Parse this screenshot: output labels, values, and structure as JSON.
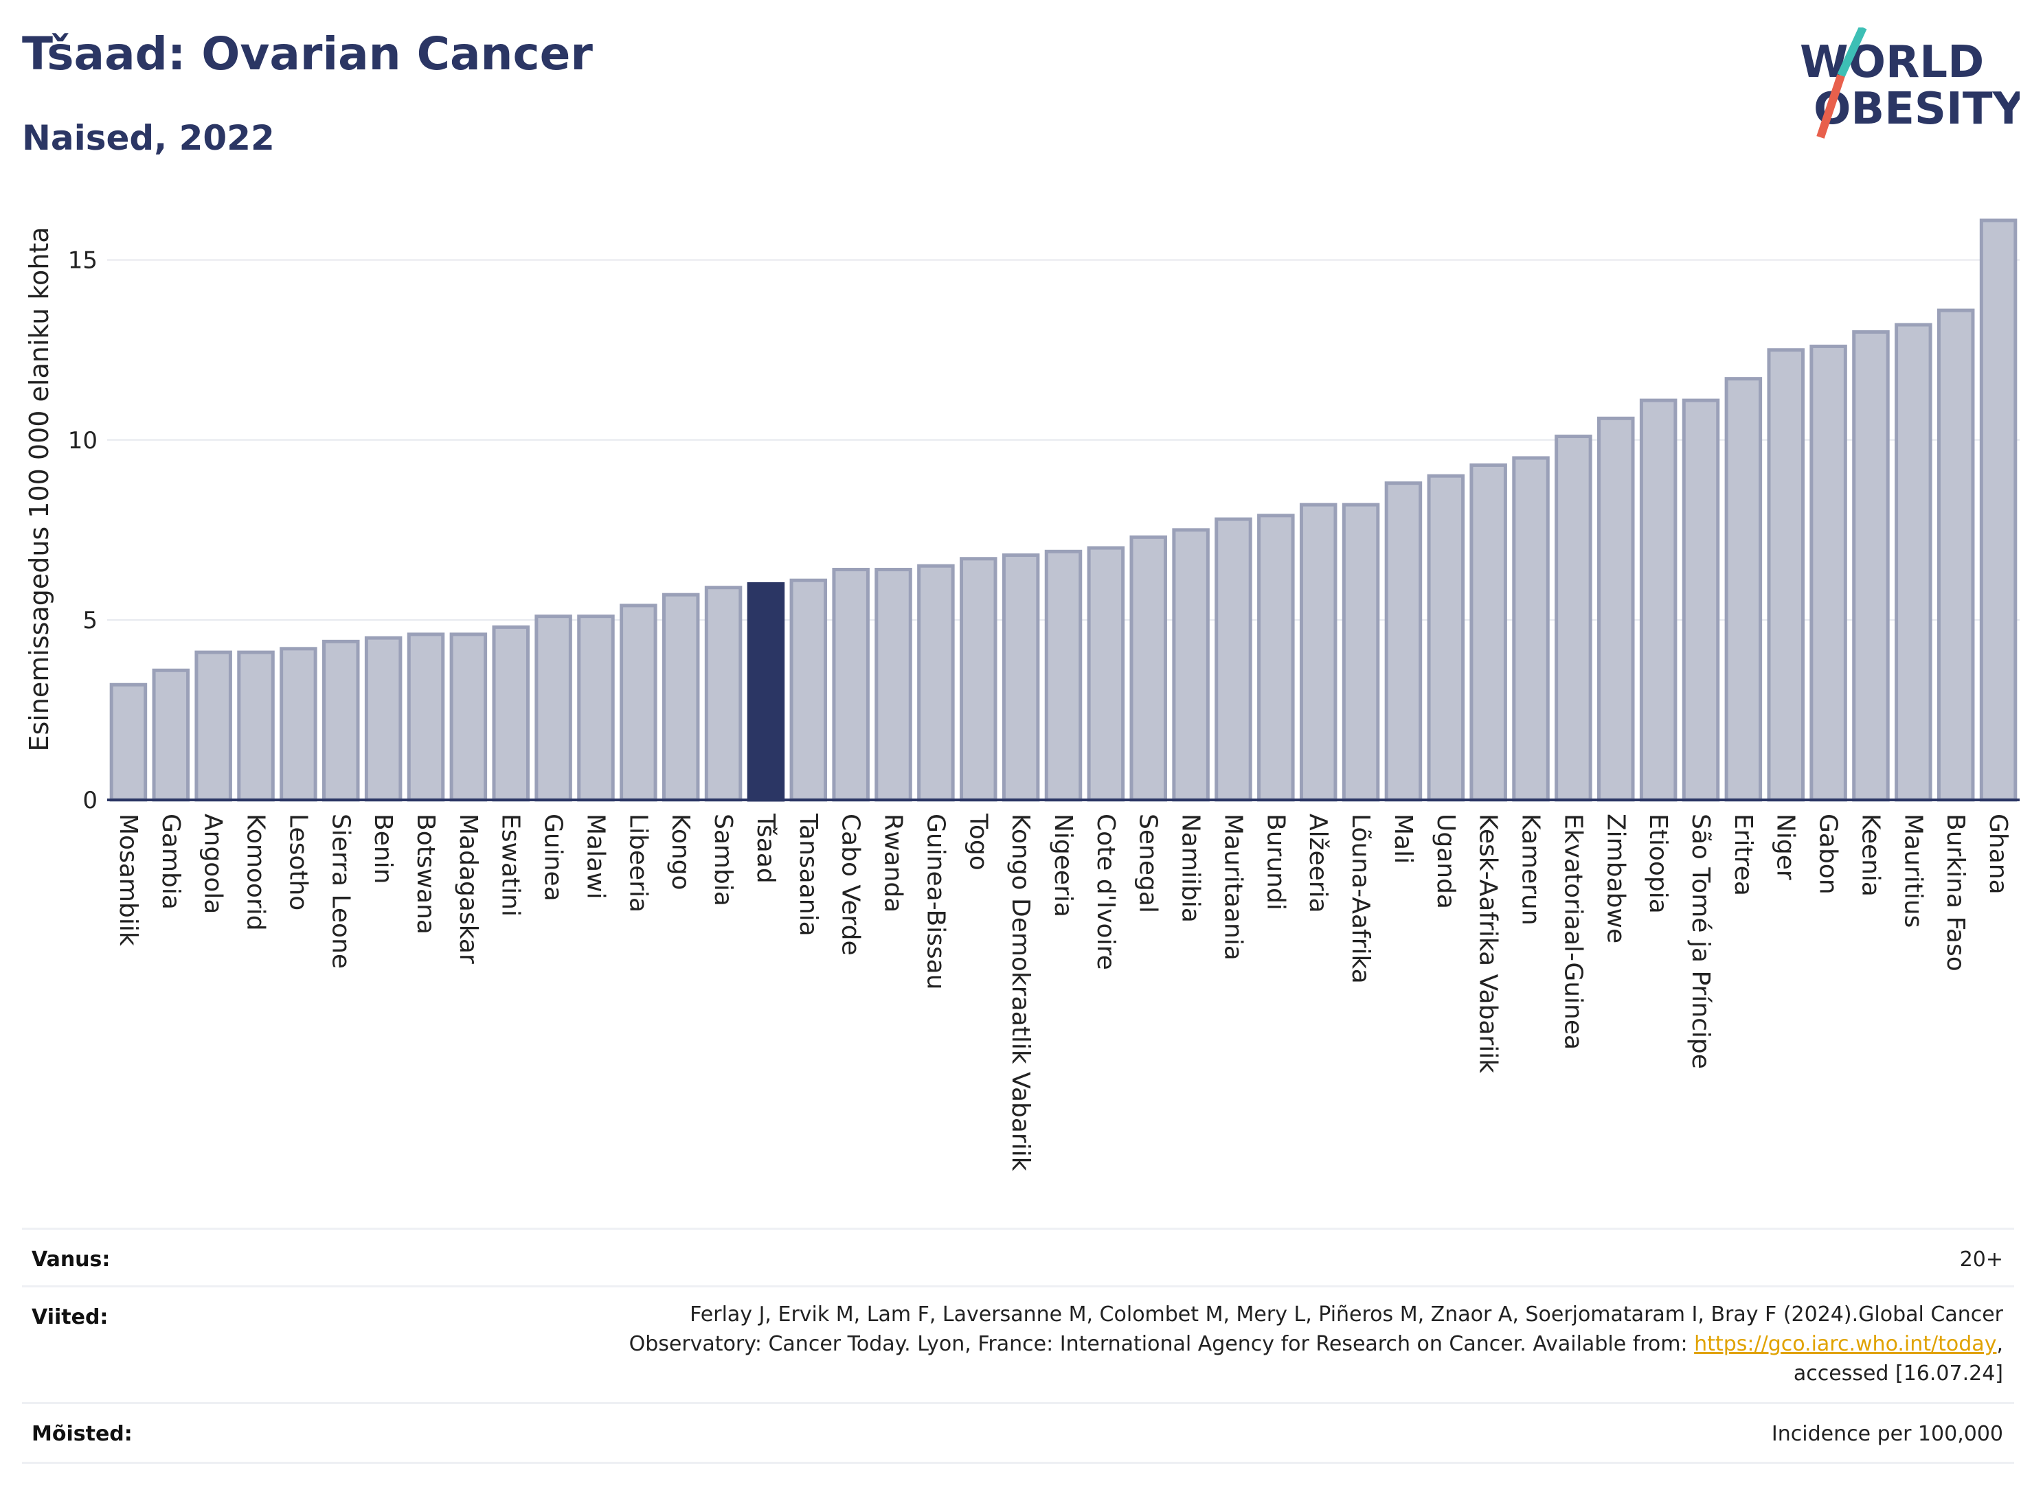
{
  "header": {
    "title": "Tšaad: Ovarian Cancer",
    "subtitle": "Naised, 2022",
    "logo_line1": "WORLD",
    "logo_line2": "OBESITY"
  },
  "colors": {
    "navy": "#2b3664",
    "bar_fill": "#bfc3d1",
    "bar_stroke": "#9aa0b8",
    "highlight": "#2b3664",
    "logo_teal": "#3dbfb5",
    "logo_red": "#e8604c"
  },
  "chart_data": {
    "type": "bar",
    "title": "Tšaad: Ovarian Cancer",
    "subtitle": "Naised, 2022",
    "ylabel": "Esinemissagedus 100 000 elaniku kohta",
    "xlabel": "",
    "ylim": [
      0,
      16.5
    ],
    "yticks": [
      0,
      5,
      10,
      15
    ],
    "grid": true,
    "highlight_category": "Tšaad",
    "categories": [
      "Mosambiik",
      "Gambia",
      "Angoola",
      "Komoorid",
      "Lesotho",
      "Sierra Leone",
      "Benin",
      "Botswana",
      "Madagaskar",
      "Eswatini",
      "Guinea",
      "Malawi",
      "Libeeria",
      "Kongo",
      "Sambia",
      "Tšaad",
      "Tansaania",
      "Cabo Verde",
      "Rwanda",
      "Guinea-Bissau",
      "Togo",
      "Kongo Demokraatlik Vabariik",
      "Nigeeria",
      "Cote d'Ivoire",
      "Senegal",
      "Namiibia",
      "Mauritaania",
      "Burundi",
      "Alžeeria",
      "Lõuna-Aafrika",
      "Mali",
      "Uganda",
      "Kesk-Aafrika Vabariik",
      "Kamerun",
      "Ekvatoriaal-Guinea",
      "Zimbabwe",
      "Etioopia",
      "São Tomé ja Príncipe",
      "Eritrea",
      "Niger",
      "Gabon",
      "Keenia",
      "Mauritius",
      "Burkina Faso",
      "Ghana"
    ],
    "values": [
      3.2,
      3.6,
      4.1,
      4.1,
      4.2,
      4.4,
      4.5,
      4.6,
      4.6,
      4.8,
      5.1,
      5.1,
      5.4,
      5.7,
      5.9,
      6.0,
      6.1,
      6.4,
      6.4,
      6.5,
      6.7,
      6.8,
      6.9,
      7.0,
      7.3,
      7.5,
      7.8,
      7.9,
      8.2,
      8.2,
      8.8,
      9.0,
      9.3,
      9.5,
      10.1,
      10.6,
      11.1,
      11.1,
      11.7,
      12.5,
      12.6,
      13.0,
      13.2,
      13.6,
      16.1
    ]
  },
  "footer": {
    "age_label": "Vanus:",
    "age_value": "20+",
    "refs_label": "Viited:",
    "refs_line1": "Ferlay J, Ervik M, Lam F, Laversanne M, Colombet M, Mery L, Piñeros M, Znaor A, Soerjomataram I, Bray F (2024).Global Cancer",
    "refs_line2_pre": "Observatory: Cancer Today. Lyon, France: International Agency for Research on Cancer. Available from: ",
    "refs_link": "https://gco.iarc.who.int/today",
    "refs_line2_post": ",",
    "refs_line3": "accessed [16.07.24]",
    "def_label": "Mõisted:",
    "def_value": "Incidence per 100,000"
  }
}
